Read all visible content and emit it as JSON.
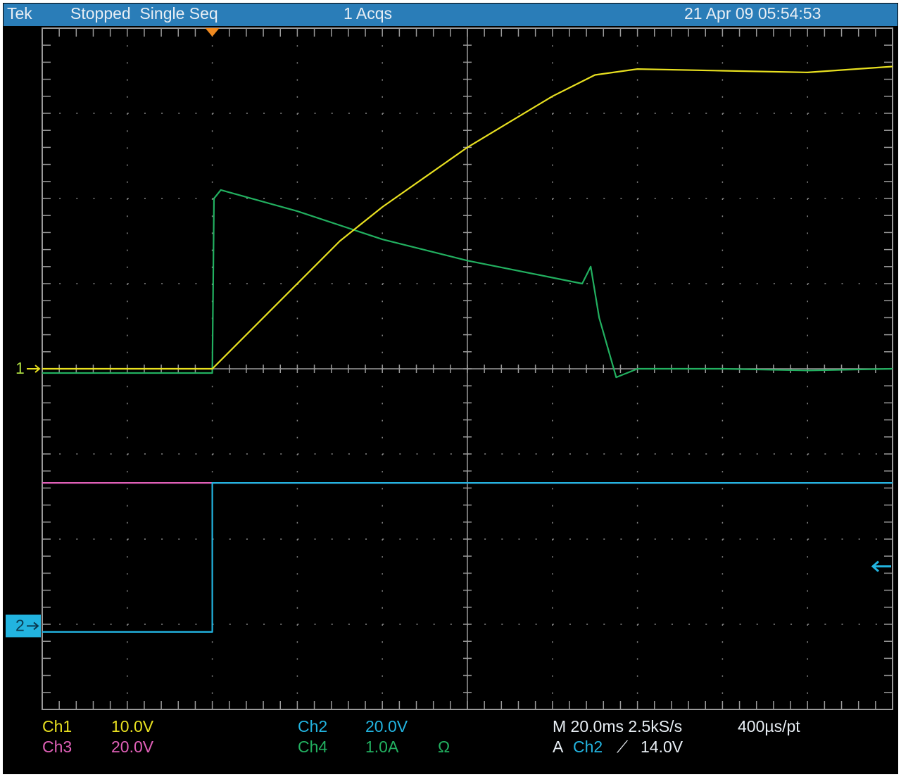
{
  "chart_data": {
    "type": "line",
    "header": {
      "brand": "Tek",
      "status": "Stopped  Single Seq",
      "acquisitions": "1 Acqs",
      "timestamp": "21 Apr 09 05:54:53"
    },
    "xlim": [
      0,
      10
    ],
    "ylim": [
      -4,
      4
    ],
    "xticks": [
      0,
      1,
      2,
      3,
      4,
      5,
      6,
      7,
      8,
      9,
      10
    ],
    "yticks": [
      -4,
      -3,
      -2,
      -1,
      0,
      1,
      2,
      3,
      4
    ],
    "grid": true,
    "trigger_position": 2,
    "trigger_level": -2.32,
    "series": [
      {
        "name": "Ch3",
        "color": "#e060b8",
        "scale": "20.0V",
        "x": [
          0,
          10
        ],
        "values": [
          -1.34,
          -1.34
        ]
      },
      {
        "name": "Ch2",
        "color": "#22b4e0",
        "scale": "20.0V",
        "marker": "2",
        "offset": -3.02,
        "x": [
          0,
          2,
          2,
          10
        ],
        "values": [
          -3.09,
          -3.09,
          -1.34,
          -1.34
        ]
      },
      {
        "name": "Ch4",
        "color": "#22b060",
        "scale": "1.0A",
        "unit_note": "Ω",
        "x": [
          0,
          2,
          2.02,
          2.1,
          3,
          4,
          5,
          6,
          6.35,
          6.45,
          6.55,
          6.75,
          7,
          8,
          9,
          10
        ],
        "values": [
          -0.05,
          -0.05,
          2.0,
          2.1,
          1.85,
          1.52,
          1.27,
          1.07,
          1.0,
          1.2,
          0.6,
          -0.1,
          0,
          0,
          -0.02,
          0
        ]
      },
      {
        "name": "Ch1",
        "color": "#e8e020",
        "scale": "10.0V",
        "marker": "1",
        "offset": 0,
        "x": [
          0,
          2,
          2.5,
          3,
          3.5,
          4,
          4.5,
          5,
          5.5,
          6,
          6.5,
          7,
          8,
          9,
          10
        ],
        "values": [
          0,
          0,
          0.5,
          1.0,
          1.5,
          1.9,
          2.25,
          2.6,
          2.9,
          3.2,
          3.45,
          3.52,
          3.5,
          3.48,
          3.55
        ]
      }
    ],
    "readout": {
      "timebase": "M 20.0ms 2.5kS/s",
      "record": "400µs/pt",
      "trigger_mode": "A",
      "trigger_source": "Ch2",
      "trigger_slope": "⟋",
      "trigger_level_label": "14.0V"
    }
  }
}
